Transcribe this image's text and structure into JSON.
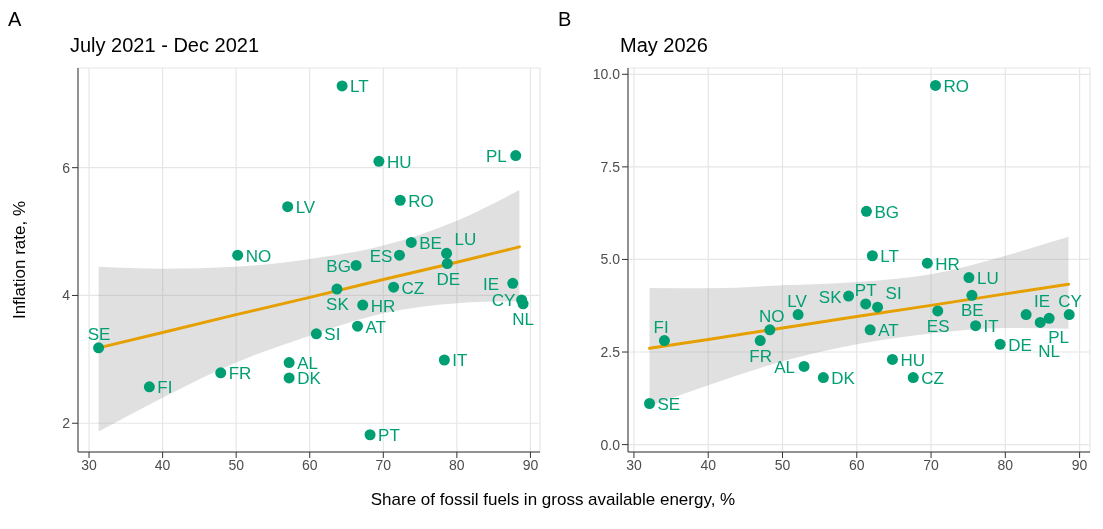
{
  "chart_data": [
    {
      "type": "scatter",
      "title": "July 2021 - Dec 2021",
      "xlabel": "Share of fossil fuels in gross available energy, %",
      "ylabel": "Inflation rate, %",
      "annotations": [
        "A"
      ],
      "xlim": [
        28.5,
        91.3
      ],
      "ylim": [
        1.55,
        7.56
      ],
      "xticks": [
        30,
        40,
        50,
        60,
        70,
        80,
        90
      ],
      "yticks": [
        2,
        4,
        6
      ],
      "grid": true,
      "legend": false,
      "series": [
        {
          "type": "scatter",
          "marker": "circle",
          "color": "#009e73",
          "x": [
            64.4,
            69.4,
            88.0,
            72.3,
            57.0,
            50.2,
            73.8,
            72.2,
            78.6,
            78.7,
            66.3,
            63.7,
            71.4,
            87.6,
            88.8,
            89.0,
            67.2,
            60.9,
            66.5,
            31.3,
            57.2,
            57.2,
            47.9,
            38.2,
            78.3,
            68.2
          ],
          "values": [
            7.28,
            6.1,
            6.19,
            5.49,
            5.39,
            4.63,
            4.83,
            4.63,
            4.66,
            4.5,
            4.47,
            4.1,
            4.13,
            4.19,
            3.93,
            3.87,
            3.85,
            3.4,
            3.52,
            3.18,
            2.95,
            2.71,
            2.79,
            2.57,
            2.99,
            1.82
          ],
          "value_labels": [
            "LT",
            "HU",
            "PL",
            "RO",
            "LV",
            "NO",
            "BE",
            "ES",
            "LU",
            "DE",
            "BG",
            "SK",
            "CZ",
            "IE",
            "CY",
            "NL",
            "HR",
            "SI",
            "AT",
            "SE",
            "AL",
            "DK",
            "FR",
            "FI",
            "IT",
            "PT"
          ]
        },
        {
          "type": "line",
          "color": "#e69f00",
          "x": [
            31.3,
            40,
            50,
            60,
            70,
            80,
            88.5
          ],
          "values": [
            3.18,
            3.42,
            3.7,
            3.97,
            4.25,
            4.52,
            4.76
          ],
          "lower": [
            1.87,
            2.4,
            2.95,
            3.37,
            3.72,
            3.88,
            3.91
          ],
          "upper": [
            4.45,
            4.42,
            4.45,
            4.57,
            4.78,
            5.17,
            5.65
          ]
        }
      ]
    },
    {
      "type": "scatter",
      "title": "May 2026",
      "annotations": [
        "B"
      ],
      "xlim": [
        29.2,
        91.4
      ],
      "ylim": [
        -0.2,
        10.17
      ],
      "xticks": [
        30,
        40,
        50,
        60,
        70,
        80,
        90
      ],
      "yticks": [
        {
          "value": 0,
          "label": "0.0"
        },
        {
          "value": 2.5,
          "label": "2.5"
        },
        {
          "value": 5,
          "label": "5.0"
        },
        {
          "value": 7.5,
          "label": "7.5"
        },
        {
          "value": 10,
          "label": "10.0"
        }
      ],
      "grid": true,
      "legend": false,
      "series": [
        {
          "type": "scatter",
          "marker": "circle",
          "color": "#009e73",
          "x": [
            70.6,
            61.3,
            62.1,
            69.5,
            75.1,
            32.1,
            34.1,
            47.0,
            48.3,
            52.1,
            52.9,
            55.5,
            58.9,
            61.2,
            62.8,
            61.8,
            64.8,
            67.6,
            70.9,
            75.5,
            76.0,
            79.3,
            82.8,
            84.7,
            85.9,
            88.6
          ],
          "values": [
            9.7,
            6.3,
            5.1,
            4.9,
            4.51,
            1.11,
            2.81,
            2.81,
            3.1,
            3.51,
            2.11,
            1.81,
            4.01,
            3.8,
            3.71,
            3.1,
            2.3,
            1.81,
            3.61,
            4.03,
            3.21,
            2.71,
            3.51,
            3.3,
            3.41,
            3.51
          ],
          "value_labels": [
            "RO",
            "BG",
            "LT",
            "HR",
            "LU",
            "SE",
            "FI",
            "FR",
            "NO",
            "LV",
            "AL",
            "DK",
            "SK",
            "PT",
            "SI",
            "AT",
            "HU",
            "CZ",
            "ES",
            "BE",
            "IT",
            "DE",
            "IE",
            "PL",
            "NL",
            "CY"
          ]
        },
        {
          "type": "line",
          "color": "#e69f00",
          "x": [
            32.1,
            40,
            50,
            60,
            70,
            80,
            88.5
          ],
          "values": [
            2.6,
            2.84,
            3.15,
            3.46,
            3.76,
            4.07,
            4.33
          ],
          "lower": [
            1.04,
            1.6,
            2.25,
            2.71,
            3.0,
            3.15,
            3.13
          ],
          "upper": [
            4.23,
            4.22,
            4.3,
            4.39,
            4.6,
            5.1,
            5.61
          ]
        }
      ]
    }
  ]
}
